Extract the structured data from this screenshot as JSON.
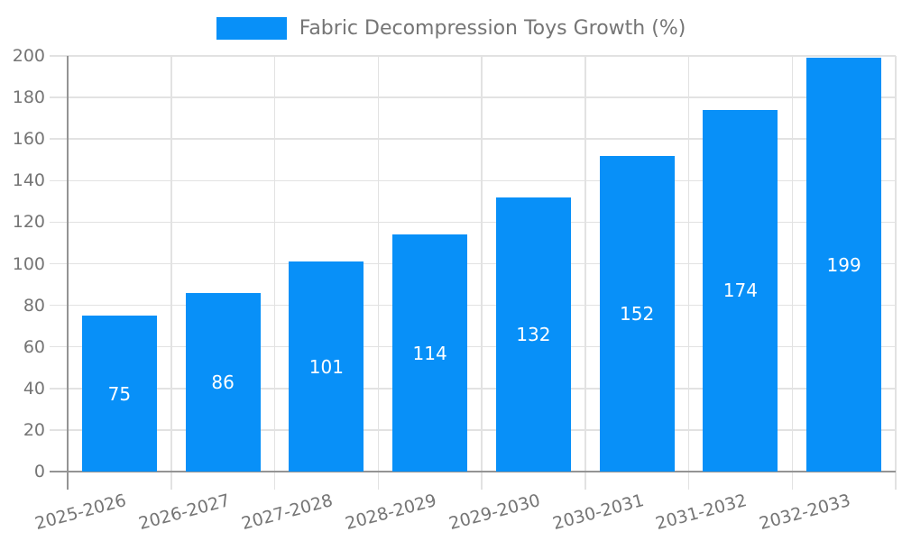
{
  "chart_data": {
    "type": "bar",
    "title": "Fabric Decompression Toys Growth (%)",
    "categories": [
      "2025-2026",
      "2026-2027",
      "2027-2028",
      "2028-2029",
      "2029-2030",
      "2030-2031",
      "2031-2032",
      "2032-2033"
    ],
    "values": [
      75,
      86,
      101,
      114,
      132,
      152,
      174,
      199
    ],
    "yticks": [
      "0",
      "20",
      "40",
      "60",
      "80",
      "100",
      "120",
      "140",
      "160",
      "180",
      "200"
    ],
    "ylim": [
      0,
      200
    ],
    "xlabel": "",
    "ylabel": "",
    "grid": true,
    "legend": {
      "label": "Fabric Decompression Toys Growth (%)",
      "position": "top-center"
    },
    "style": {
      "bar_color": "#0890f8",
      "value_label_color": "#ffffff",
      "grid_color": "#e2e2e2",
      "axis_color": "#949494",
      "tick_label_color": "#757575",
      "background_color": "#ffffff"
    }
  }
}
